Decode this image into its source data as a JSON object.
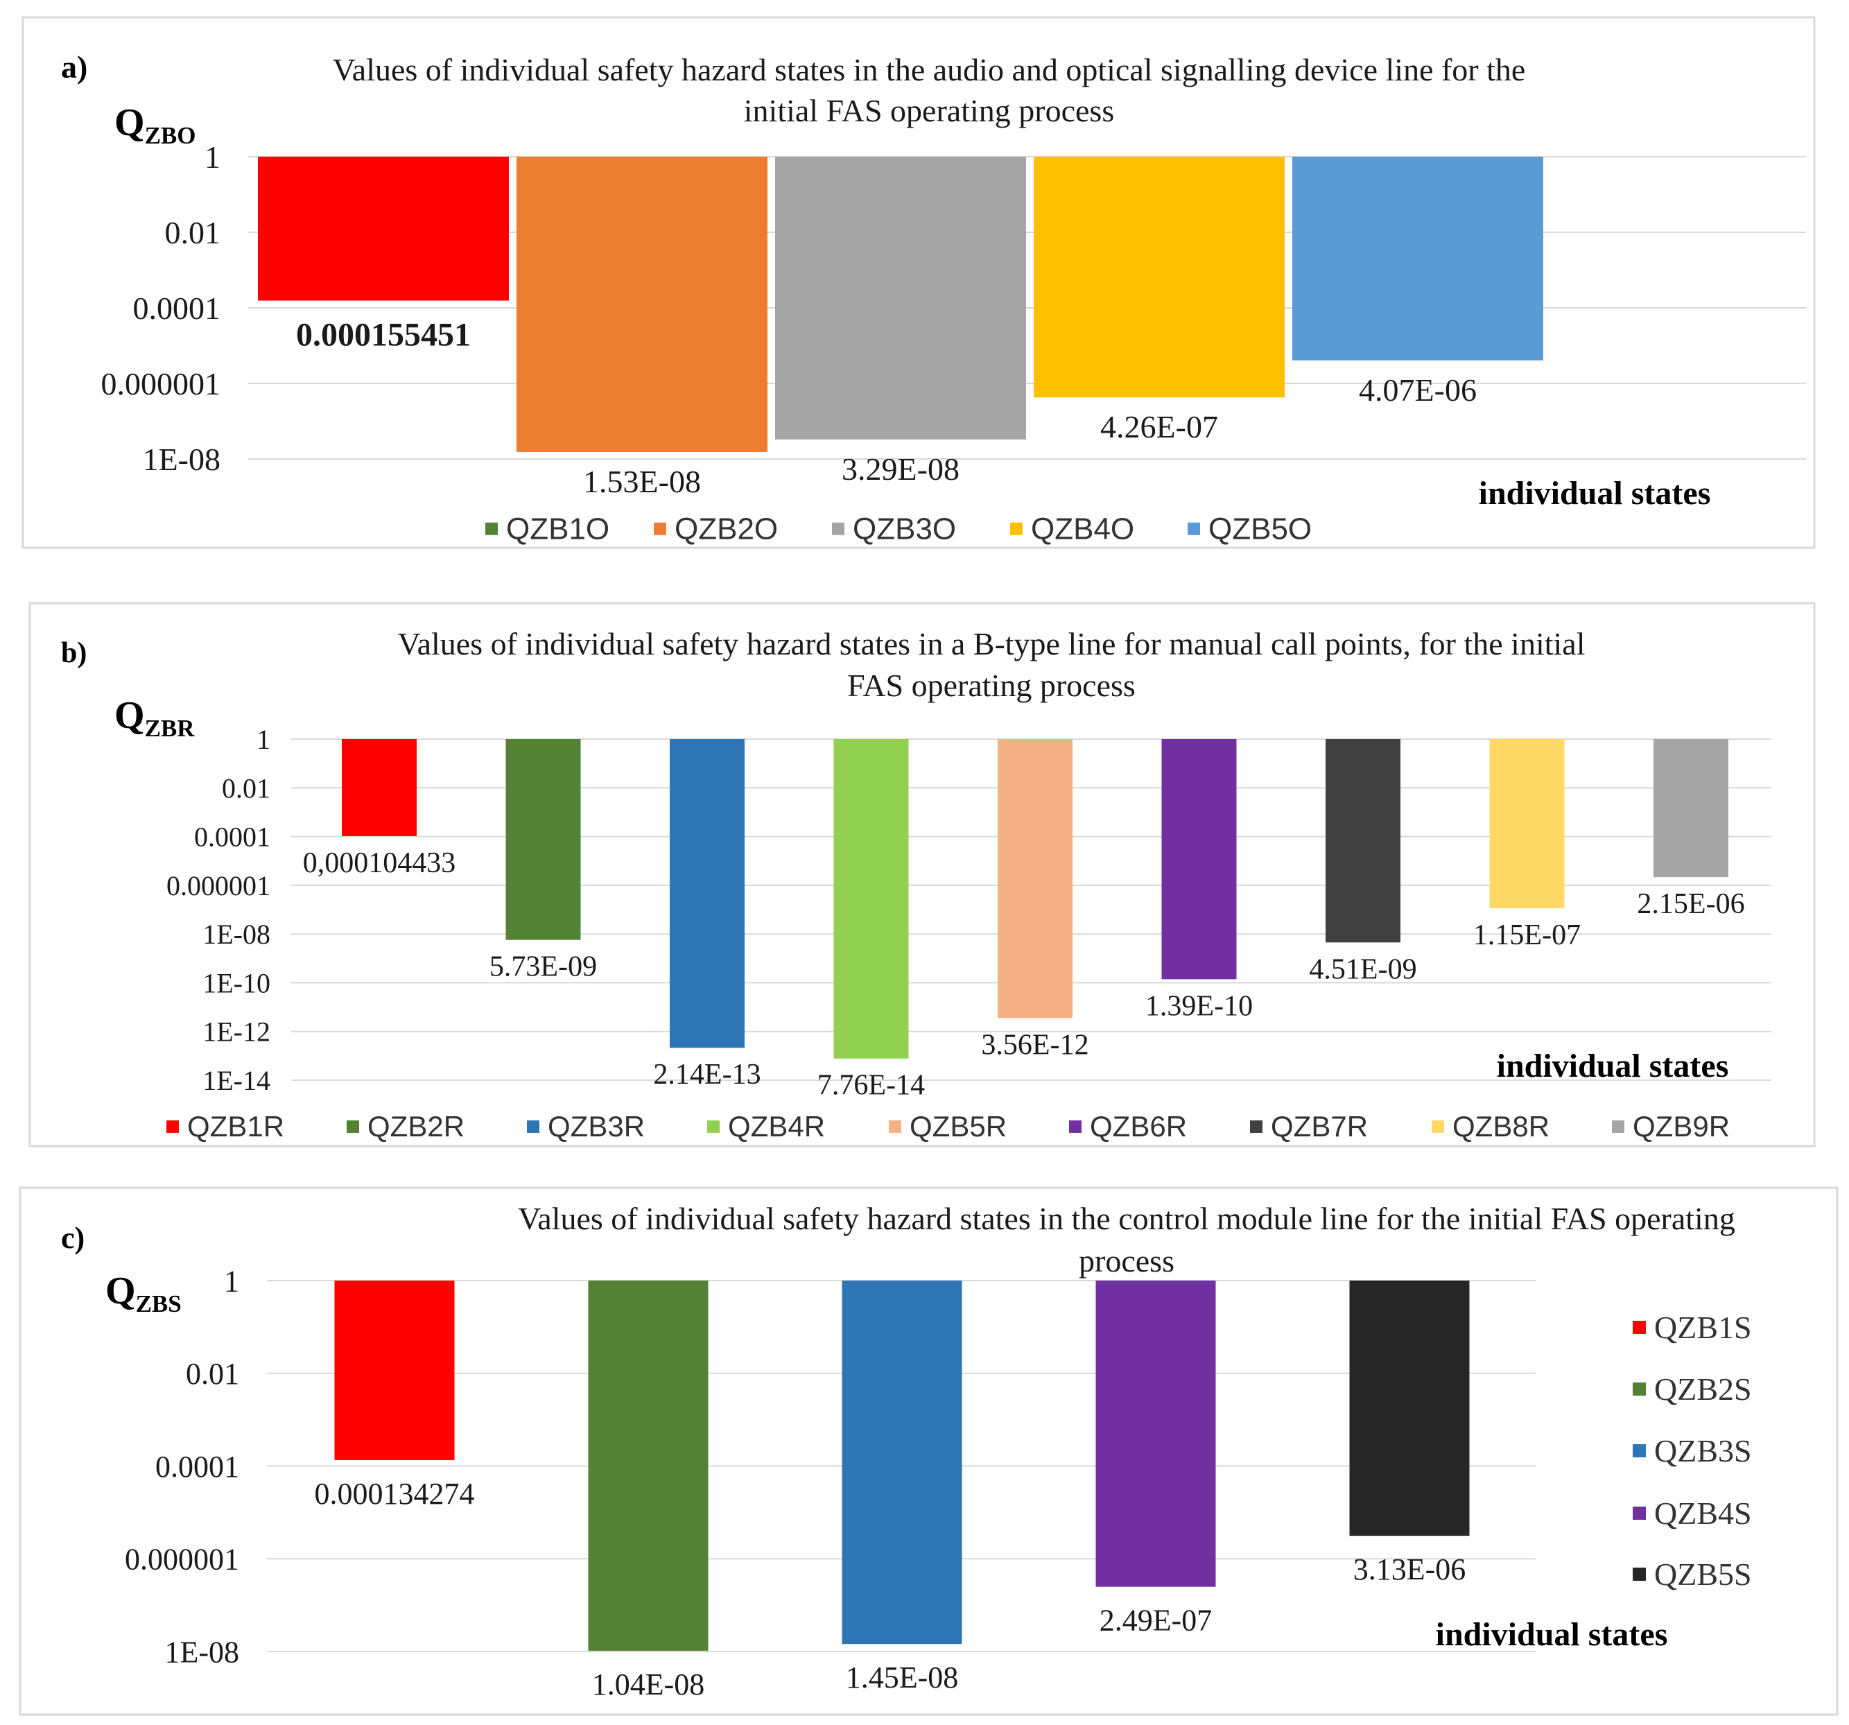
{
  "chart_data": [
    {
      "type": "bar",
      "panel_label": "a)",
      "title_lines": [
        "Values of individual safety hazard states in the audio and optical signalling device line for the",
        "initial FAS operating process"
      ],
      "ylabel_main": "Q",
      "ylabel_sub": "ZBO",
      "xlabel": "individual states",
      "yscale": "log",
      "ylim": [
        1e-08,
        1
      ],
      "yticks": [
        {
          "v": 1,
          "label": "1"
        },
        {
          "v": 0.01,
          "label": "0.01"
        },
        {
          "v": 0.0001,
          "label": "0.0001"
        },
        {
          "v": 1e-06,
          "label": "0.000001"
        },
        {
          "v": 1e-08,
          "label": "1E-08"
        }
      ],
      "categories": [
        "QZB1O",
        "QZB2O",
        "QZB3O",
        "QZB4O",
        "QZB5O"
      ],
      "values": [
        0.000155451,
        1.53e-08,
        3.29e-08,
        4.26e-07,
        4.07e-06
      ],
      "data_labels": [
        "0.000155451",
        "1.53E-08",
        "3.29E-08",
        "4.26E-07",
        "4.07E-06"
      ],
      "bar_colors": [
        "#ff0000",
        "#ed7d31",
        "#a5a5a5",
        "#ffc000",
        "#5b9bd5"
      ],
      "legend": [
        {
          "name": "QZB1O",
          "color": "#548235"
        },
        {
          "name": "QZB2O",
          "color": "#ed7d31"
        },
        {
          "name": "QZB3O",
          "color": "#a5a5a5"
        },
        {
          "name": "QZB4O",
          "color": "#ffc000"
        },
        {
          "name": "QZB5O",
          "color": "#5b9bd5"
        }
      ],
      "legend_position": "bottom"
    },
    {
      "type": "bar",
      "panel_label": "b)",
      "title_lines": [
        "Values of individual safety hazard states in a B-type line for manual call points, for the initial",
        "FAS operating process"
      ],
      "ylabel_main": "Q",
      "ylabel_sub": "ZBR",
      "xlabel": "individual states",
      "yscale": "log",
      "ylim": [
        1e-14,
        1
      ],
      "yticks": [
        {
          "v": 1,
          "label": "1"
        },
        {
          "v": 0.01,
          "label": "0.01"
        },
        {
          "v": 0.0001,
          "label": "0.0001"
        },
        {
          "v": 1e-06,
          "label": "0.000001"
        },
        {
          "v": 1e-08,
          "label": "1E-08"
        },
        {
          "v": 1e-10,
          "label": "1E-10"
        },
        {
          "v": 1e-12,
          "label": "1E-12"
        },
        {
          "v": 1e-14,
          "label": "1E-14"
        }
      ],
      "categories": [
        "QZB1R",
        "QZB2R",
        "QZB3R",
        "QZB4R",
        "QZB5R",
        "QZB6R",
        "QZB7R",
        "QZB8R",
        "QZB9R"
      ],
      "values": [
        0.000104433,
        5.73e-09,
        2.14e-13,
        7.76e-14,
        3.56e-12,
        1.39e-10,
        4.51e-09,
        1.15e-07,
        2.15e-06
      ],
      "data_labels": [
        "0,000104433",
        "5.73E-09",
        "2.14E-13",
        "7.76E-14",
        "3.56E-12",
        "1.39E-10",
        "4.51E-09",
        "1.15E-07",
        "2.15E-06"
      ],
      "bar_colors": [
        "#ff0000",
        "#548235",
        "#2e75b6",
        "#92d050",
        "#f4b183",
        "#7030a0",
        "#404040",
        "#ffd966",
        "#a5a5a5"
      ],
      "legend": [
        {
          "name": "QZB1R",
          "color": "#ff0000"
        },
        {
          "name": "QZB2R",
          "color": "#548235"
        },
        {
          "name": "QZB3R",
          "color": "#2e75b6"
        },
        {
          "name": "QZB4R",
          "color": "#92d050"
        },
        {
          "name": "QZB5R",
          "color": "#f4b183"
        },
        {
          "name": "QZB6R",
          "color": "#7030a0"
        },
        {
          "name": "QZB7R",
          "color": "#404040"
        },
        {
          "name": "QZB8R",
          "color": "#ffd966"
        },
        {
          "name": "QZB9R",
          "color": "#a5a5a5"
        }
      ],
      "legend_position": "bottom"
    },
    {
      "type": "bar",
      "panel_label": "c)",
      "title_lines": [
        "Values of individual safety hazard states in the control module line for the initial FAS operating",
        "process"
      ],
      "ylabel_main": "Q",
      "ylabel_sub": "ZBS",
      "xlabel": "individual states",
      "yscale": "log",
      "ylim": [
        1e-08,
        1
      ],
      "yticks": [
        {
          "v": 1,
          "label": "1"
        },
        {
          "v": 0.01,
          "label": "0.01"
        },
        {
          "v": 0.0001,
          "label": "0.0001"
        },
        {
          "v": 1e-06,
          "label": "0.000001"
        },
        {
          "v": 1e-08,
          "label": "1E-08"
        }
      ],
      "categories": [
        "QZB1S",
        "QZB2S",
        "QZB3S",
        "QZB4S",
        "QZB5S"
      ],
      "values": [
        0.000134274,
        1.04e-08,
        1.45e-08,
        2.49e-07,
        3.13e-06
      ],
      "data_labels": [
        "0.000134274",
        "1.04E-08",
        "1.45E-08",
        "2.49E-07",
        "3.13E-06"
      ],
      "bar_colors": [
        "#ff0000",
        "#548235",
        "#2e75b6",
        "#7030a0",
        "#262626"
      ],
      "legend": [
        {
          "name": "QZB1S",
          "color": "#ff0000"
        },
        {
          "name": "QZB2S",
          "color": "#548235"
        },
        {
          "name": "QZB3S",
          "color": "#2e75b6"
        },
        {
          "name": "QZB4S",
          "color": "#7030a0"
        },
        {
          "name": "QZB5S",
          "color": "#262626"
        }
      ],
      "legend_position": "right"
    }
  ]
}
